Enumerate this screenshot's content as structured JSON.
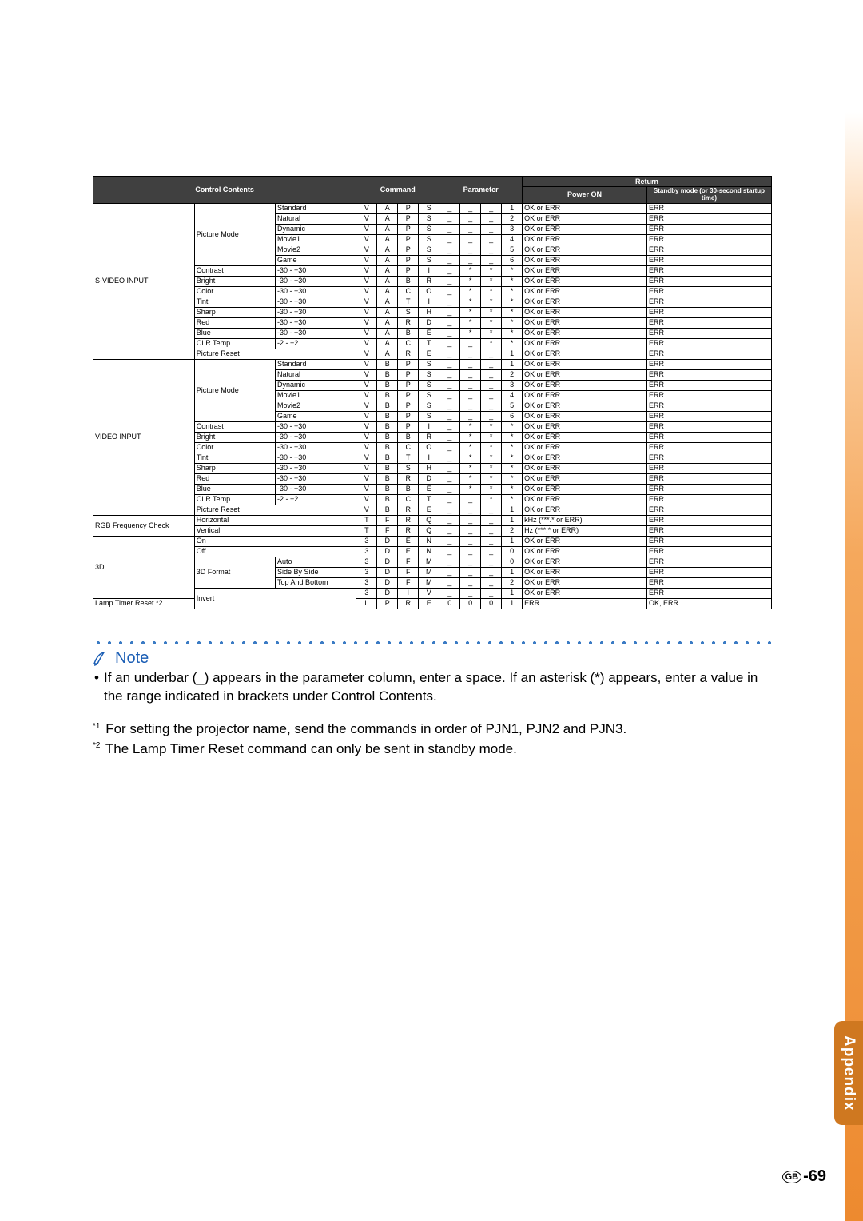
{
  "headers": {
    "control_contents": "Control Contents",
    "command": "Command",
    "parameter": "Parameter",
    "return": "Return",
    "power_on": "Power ON",
    "standby": "Standby mode\n(or 30-second startup time)"
  },
  "rows": [
    {
      "cat": "S-VIDEO INPUT",
      "item": "Picture Mode",
      "sub": "Standard",
      "cmd": [
        "V",
        "A",
        "P",
        "S"
      ],
      "par": [
        "_",
        "_",
        "_",
        "1"
      ],
      "pow": "OK or ERR",
      "stb": "ERR"
    },
    {
      "cat": "",
      "item": "",
      "sub": "Natural",
      "cmd": [
        "V",
        "A",
        "P",
        "S"
      ],
      "par": [
        "_",
        "_",
        "_",
        "2"
      ],
      "pow": "OK or ERR",
      "stb": "ERR"
    },
    {
      "cat": "",
      "item": "",
      "sub": "Dynamic",
      "cmd": [
        "V",
        "A",
        "P",
        "S"
      ],
      "par": [
        "_",
        "_",
        "_",
        "3"
      ],
      "pow": "OK or ERR",
      "stb": "ERR"
    },
    {
      "cat": "",
      "item": "",
      "sub": "Movie1",
      "cmd": [
        "V",
        "A",
        "P",
        "S"
      ],
      "par": [
        "_",
        "_",
        "_",
        "4"
      ],
      "pow": "OK or ERR",
      "stb": "ERR"
    },
    {
      "cat": "",
      "item": "",
      "sub": "Movie2",
      "cmd": [
        "V",
        "A",
        "P",
        "S"
      ],
      "par": [
        "_",
        "_",
        "_",
        "5"
      ],
      "pow": "OK or ERR",
      "stb": "ERR"
    },
    {
      "cat": "",
      "item": "",
      "sub": "Game",
      "cmd": [
        "V",
        "A",
        "P",
        "S"
      ],
      "par": [
        "_",
        "_",
        "_",
        "6"
      ],
      "pow": "OK or ERR",
      "stb": "ERR"
    },
    {
      "cat": "",
      "item": "Contrast",
      "sub": "-30 - +30",
      "cmd": [
        "V",
        "A",
        "P",
        "I"
      ],
      "par": [
        "_",
        "*",
        "*",
        "*"
      ],
      "pow": "OK or ERR",
      "stb": "ERR"
    },
    {
      "cat": "",
      "item": "Bright",
      "sub": "-30 - +30",
      "cmd": [
        "V",
        "A",
        "B",
        "R"
      ],
      "par": [
        "_",
        "*",
        "*",
        "*"
      ],
      "pow": "OK or ERR",
      "stb": "ERR"
    },
    {
      "cat": "",
      "item": "Color",
      "sub": "-30 - +30",
      "cmd": [
        "V",
        "A",
        "C",
        "O"
      ],
      "par": [
        "_",
        "*",
        "*",
        "*"
      ],
      "pow": "OK or ERR",
      "stb": "ERR"
    },
    {
      "cat": "",
      "item": "Tint",
      "sub": "-30 - +30",
      "cmd": [
        "V",
        "A",
        "T",
        "I"
      ],
      "par": [
        "_",
        "*",
        "*",
        "*"
      ],
      "pow": "OK or ERR",
      "stb": "ERR"
    },
    {
      "cat": "",
      "item": "Sharp",
      "sub": "-30 - +30",
      "cmd": [
        "V",
        "A",
        "S",
        "H"
      ],
      "par": [
        "_",
        "*",
        "*",
        "*"
      ],
      "pow": "OK or ERR",
      "stb": "ERR"
    },
    {
      "cat": "",
      "item": "Red",
      "sub": "-30 - +30",
      "cmd": [
        "V",
        "A",
        "R",
        "D"
      ],
      "par": [
        "_",
        "*",
        "*",
        "*"
      ],
      "pow": "OK or ERR",
      "stb": "ERR"
    },
    {
      "cat": "",
      "item": "Blue",
      "sub": "-30 - +30",
      "cmd": [
        "V",
        "A",
        "B",
        "E"
      ],
      "par": [
        "_",
        "*",
        "*",
        "*"
      ],
      "pow": "OK or ERR",
      "stb": "ERR"
    },
    {
      "cat": "",
      "item": "CLR Temp",
      "sub": "-2 - +2",
      "cmd": [
        "V",
        "A",
        "C",
        "T"
      ],
      "par": [
        "_",
        "_",
        "*",
        "*"
      ],
      "pow": "OK or ERR",
      "stb": "ERR"
    },
    {
      "cat": "",
      "item": "Picture Reset",
      "sub": "",
      "cmd": [
        "V",
        "A",
        "R",
        "E"
      ],
      "par": [
        "_",
        "_",
        "_",
        "1"
      ],
      "pow": "OK or ERR",
      "stb": "ERR",
      "subspan": true
    },
    {
      "cat": "VIDEO INPUT",
      "item": "Picture Mode",
      "sub": "Standard",
      "cmd": [
        "V",
        "B",
        "P",
        "S"
      ],
      "par": [
        "_",
        "_",
        "_",
        "1"
      ],
      "pow": "OK or ERR",
      "stb": "ERR"
    },
    {
      "cat": "",
      "item": "",
      "sub": "Natural",
      "cmd": [
        "V",
        "B",
        "P",
        "S"
      ],
      "par": [
        "_",
        "_",
        "_",
        "2"
      ],
      "pow": "OK or ERR",
      "stb": "ERR"
    },
    {
      "cat": "",
      "item": "",
      "sub": "Dynamic",
      "cmd": [
        "V",
        "B",
        "P",
        "S"
      ],
      "par": [
        "_",
        "_",
        "_",
        "3"
      ],
      "pow": "OK or ERR",
      "stb": "ERR"
    },
    {
      "cat": "",
      "item": "",
      "sub": "Movie1",
      "cmd": [
        "V",
        "B",
        "P",
        "S"
      ],
      "par": [
        "_",
        "_",
        "_",
        "4"
      ],
      "pow": "OK or ERR",
      "stb": "ERR"
    },
    {
      "cat": "",
      "item": "",
      "sub": "Movie2",
      "cmd": [
        "V",
        "B",
        "P",
        "S"
      ],
      "par": [
        "_",
        "_",
        "_",
        "5"
      ],
      "pow": "OK or ERR",
      "stb": "ERR"
    },
    {
      "cat": "",
      "item": "",
      "sub": "Game",
      "cmd": [
        "V",
        "B",
        "P",
        "S"
      ],
      "par": [
        "_",
        "_",
        "_",
        "6"
      ],
      "pow": "OK or ERR",
      "stb": "ERR"
    },
    {
      "cat": "",
      "item": "Contrast",
      "sub": "-30 - +30",
      "cmd": [
        "V",
        "B",
        "P",
        "I"
      ],
      "par": [
        "_",
        "*",
        "*",
        "*"
      ],
      "pow": "OK or ERR",
      "stb": "ERR"
    },
    {
      "cat": "",
      "item": "Bright",
      "sub": "-30 - +30",
      "cmd": [
        "V",
        "B",
        "B",
        "R"
      ],
      "par": [
        "_",
        "*",
        "*",
        "*"
      ],
      "pow": "OK or ERR",
      "stb": "ERR"
    },
    {
      "cat": "",
      "item": "Color",
      "sub": "-30 - +30",
      "cmd": [
        "V",
        "B",
        "C",
        "O"
      ],
      "par": [
        "_",
        "*",
        "*",
        "*"
      ],
      "pow": "OK or ERR",
      "stb": "ERR"
    },
    {
      "cat": "",
      "item": "Tint",
      "sub": "-30 - +30",
      "cmd": [
        "V",
        "B",
        "T",
        "I"
      ],
      "par": [
        "_",
        "*",
        "*",
        "*"
      ],
      "pow": "OK or ERR",
      "stb": "ERR"
    },
    {
      "cat": "",
      "item": "Sharp",
      "sub": "-30 - +30",
      "cmd": [
        "V",
        "B",
        "S",
        "H"
      ],
      "par": [
        "_",
        "*",
        "*",
        "*"
      ],
      "pow": "OK or ERR",
      "stb": "ERR"
    },
    {
      "cat": "",
      "item": "Red",
      "sub": "-30 - +30",
      "cmd": [
        "V",
        "B",
        "R",
        "D"
      ],
      "par": [
        "_",
        "*",
        "*",
        "*"
      ],
      "pow": "OK or ERR",
      "stb": "ERR"
    },
    {
      "cat": "",
      "item": "Blue",
      "sub": "-30 - +30",
      "cmd": [
        "V",
        "B",
        "B",
        "E"
      ],
      "par": [
        "_",
        "*",
        "*",
        "*"
      ],
      "pow": "OK or ERR",
      "stb": "ERR"
    },
    {
      "cat": "",
      "item": "CLR Temp",
      "sub": "-2 - +2",
      "cmd": [
        "V",
        "B",
        "C",
        "T"
      ],
      "par": [
        "_",
        "_",
        "*",
        "*"
      ],
      "pow": "OK or ERR",
      "stb": "ERR"
    },
    {
      "cat": "",
      "item": "Picture Reset",
      "sub": "",
      "cmd": [
        "V",
        "B",
        "R",
        "E"
      ],
      "par": [
        "_",
        "_",
        "_",
        "1"
      ],
      "pow": "OK or ERR",
      "stb": "ERR",
      "subspan": true
    },
    {
      "cat": "RGB Frequency Check",
      "item": "Horizontal",
      "sub": "",
      "cmd": [
        "T",
        "F",
        "R",
        "Q"
      ],
      "par": [
        "_",
        "_",
        "_",
        "1"
      ],
      "pow": "kHz (***.* or ERR)",
      "stb": "ERR",
      "subspan": true
    },
    {
      "cat": "",
      "item": "Vertical",
      "sub": "",
      "cmd": [
        "T",
        "F",
        "R",
        "Q"
      ],
      "par": [
        "_",
        "_",
        "_",
        "2"
      ],
      "pow": "Hz (***.* or ERR)",
      "stb": "ERR",
      "subspan": true
    },
    {
      "cat": "3D",
      "item": "On",
      "sub": "",
      "cmd": [
        "3",
        "D",
        "E",
        "N"
      ],
      "par": [
        "_",
        "_",
        "_",
        "1"
      ],
      "pow": "OK or ERR",
      "stb": "ERR",
      "subspan": true
    },
    {
      "cat": "",
      "item": "Off",
      "sub": "",
      "cmd": [
        "3",
        "D",
        "E",
        "N"
      ],
      "par": [
        "_",
        "_",
        "_",
        "0"
      ],
      "pow": "OK or ERR",
      "stb": "ERR",
      "subspan": true
    },
    {
      "cat": "",
      "item": "3D Format",
      "sub": "Auto",
      "cmd": [
        "3",
        "D",
        "F",
        "M"
      ],
      "par": [
        "_",
        "_",
        "_",
        "0"
      ],
      "pow": "OK or ERR",
      "stb": "ERR"
    },
    {
      "cat": "",
      "item": "",
      "sub": "Side By Side",
      "cmd": [
        "3",
        "D",
        "F",
        "M"
      ],
      "par": [
        "_",
        "_",
        "_",
        "1"
      ],
      "pow": "OK or ERR",
      "stb": "ERR"
    },
    {
      "cat": "",
      "item": "",
      "sub": "Top And Bottom",
      "cmd": [
        "3",
        "D",
        "F",
        "M"
      ],
      "par": [
        "_",
        "_",
        "_",
        "2"
      ],
      "pow": "OK or ERR",
      "stb": "ERR"
    },
    {
      "cat": "",
      "item": "Invert",
      "sub": "",
      "cmd": [
        "3",
        "D",
        "I",
        "V"
      ],
      "par": [
        "_",
        "_",
        "_",
        "1"
      ],
      "pow": "OK or ERR",
      "stb": "ERR",
      "subspan": true
    },
    {
      "cat": "Lamp Timer Reset *2",
      "item": "",
      "sub": "",
      "cmd": [
        "L",
        "P",
        "R",
        "E"
      ],
      "par": [
        "0",
        "0",
        "0",
        "1"
      ],
      "pow": "ERR",
      "stb": "OK, ERR",
      "fullspan": true
    }
  ],
  "note": {
    "label": "Note",
    "body": "If an underbar (_) appears in the parameter column, enter a space. If an asterisk (*) appears, enter a value in the range indicated in brackets under Control Contents."
  },
  "footnotes": {
    "f1_sup": "*1",
    "f1": "For setting the projector name, send the commands in order of PJN1, PJN2 and PJN3.",
    "f2_sup": "*2",
    "f2": "The Lamp Timer Reset command can only be sent in standby mode."
  },
  "appendix_label": "Appendix",
  "page": {
    "gb": "GB",
    "num": "-69"
  }
}
